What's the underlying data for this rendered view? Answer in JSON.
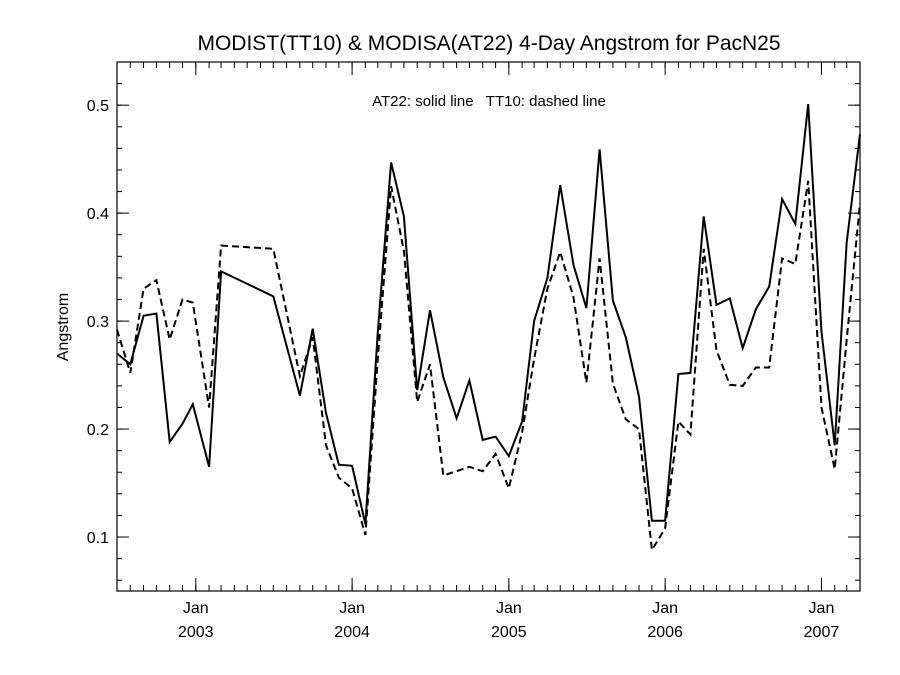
{
  "chart_data": {
    "type": "line",
    "title": "MODIST(TT10) & MODISA(AT22) 4-Day Angstrom for PacN25",
    "ylabel": "Angstrom",
    "xlabel": "",
    "annotation": "AT22: solid line   TT10: dashed line",
    "xlim": [
      "2002-07-01",
      "2007-04-01"
    ],
    "ylim": [
      0.05,
      0.54
    ],
    "y_ticks": [
      0.1,
      0.2,
      0.3,
      0.4,
      0.5
    ],
    "y_tick_labels": [
      "0.1",
      "0.2",
      "0.3",
      "0.4",
      "0.5"
    ],
    "x_ticks": [
      {
        "date": "2003-01-01",
        "month": "Jan",
        "year": "2003"
      },
      {
        "date": "2004-01-01",
        "month": "Jan",
        "year": "2004"
      },
      {
        "date": "2005-01-01",
        "month": "Jan",
        "year": "2005"
      },
      {
        "date": "2006-01-01",
        "month": "Jan",
        "year": "2006"
      },
      {
        "date": "2007-01-01",
        "month": "Jan",
        "year": "2007"
      }
    ],
    "series": [
      {
        "name": "AT22",
        "style": "solid",
        "points": [
          [
            "2002-07-01",
            0.27
          ],
          [
            "2002-08-01",
            0.26
          ],
          [
            "2002-09-01",
            0.305
          ],
          [
            "2002-10-01",
            0.307
          ],
          [
            "2002-11-01",
            0.188
          ],
          [
            "2002-12-01",
            0.205
          ],
          [
            "2002-12-25",
            0.223
          ],
          [
            "2003-02-01",
            0.165
          ],
          [
            "2003-03-01",
            0.346
          ],
          [
            "2003-07-01",
            0.323
          ],
          [
            "2003-09-01",
            0.231
          ],
          [
            "2003-10-01",
            0.293
          ],
          [
            "2003-11-01",
            0.215
          ],
          [
            "2003-12-01",
            0.167
          ],
          [
            "2004-01-01",
            0.166
          ],
          [
            "2004-02-01",
            0.112
          ],
          [
            "2004-03-01",
            0.29
          ],
          [
            "2004-04-01",
            0.447
          ],
          [
            "2004-05-01",
            0.397
          ],
          [
            "2004-06-01",
            0.236
          ],
          [
            "2004-07-01",
            0.31
          ],
          [
            "2004-08-01",
            0.248
          ],
          [
            "2004-09-01",
            0.21
          ],
          [
            "2004-10-01",
            0.245
          ],
          [
            "2004-11-01",
            0.19
          ],
          [
            "2004-12-01",
            0.193
          ],
          [
            "2005-01-01",
            0.175
          ],
          [
            "2005-02-01",
            0.207
          ],
          [
            "2005-03-01",
            0.3
          ],
          [
            "2005-04-01",
            0.34
          ],
          [
            "2005-05-01",
            0.426
          ],
          [
            "2005-06-01",
            0.352
          ],
          [
            "2005-07-01",
            0.312
          ],
          [
            "2005-08-01",
            0.459
          ],
          [
            "2005-09-01",
            0.319
          ],
          [
            "2005-10-01",
            0.285
          ],
          [
            "2005-11-01",
            0.23
          ],
          [
            "2005-12-01",
            0.115
          ],
          [
            "2006-01-01",
            0.115
          ],
          [
            "2006-02-01",
            0.251
          ],
          [
            "2006-03-01",
            0.252
          ],
          [
            "2006-04-01",
            0.397
          ],
          [
            "2006-05-01",
            0.315
          ],
          [
            "2006-06-01",
            0.321
          ],
          [
            "2006-07-01",
            0.275
          ],
          [
            "2006-08-01",
            0.311
          ],
          [
            "2006-09-01",
            0.332
          ],
          [
            "2006-10-01",
            0.413
          ],
          [
            "2006-11-01",
            0.39
          ],
          [
            "2006-12-01",
            0.501
          ],
          [
            "2007-01-01",
            0.29
          ],
          [
            "2007-02-01",
            0.185
          ],
          [
            "2007-03-01",
            0.373
          ],
          [
            "2007-04-01",
            0.473
          ]
        ]
      },
      {
        "name": "TT10",
        "style": "dashed",
        "points": [
          [
            "2002-07-01",
            0.292
          ],
          [
            "2002-08-01",
            0.252
          ],
          [
            "2002-09-01",
            0.33
          ],
          [
            "2002-10-01",
            0.338
          ],
          [
            "2002-11-01",
            0.283
          ],
          [
            "2002-12-01",
            0.32
          ],
          [
            "2002-12-25",
            0.317
          ],
          [
            "2003-02-01",
            0.22
          ],
          [
            "2003-03-01",
            0.37
          ],
          [
            "2003-07-01",
            0.367
          ],
          [
            "2003-09-01",
            0.249
          ],
          [
            "2003-10-01",
            0.285
          ],
          [
            "2003-11-01",
            0.185
          ],
          [
            "2003-12-01",
            0.155
          ],
          [
            "2004-01-01",
            0.145
          ],
          [
            "2004-02-01",
            0.102
          ],
          [
            "2004-03-01",
            0.265
          ],
          [
            "2004-04-01",
            0.425
          ],
          [
            "2004-05-01",
            0.365
          ],
          [
            "2004-06-01",
            0.225
          ],
          [
            "2004-07-01",
            0.26
          ],
          [
            "2004-08-01",
            0.157
          ],
          [
            "2004-09-01",
            0.161
          ],
          [
            "2004-10-01",
            0.165
          ],
          [
            "2004-11-01",
            0.161
          ],
          [
            "2004-12-01",
            0.177
          ],
          [
            "2005-01-01",
            0.145
          ],
          [
            "2005-02-01",
            0.197
          ],
          [
            "2005-03-01",
            0.265
          ],
          [
            "2005-04-01",
            0.33
          ],
          [
            "2005-05-01",
            0.364
          ],
          [
            "2005-06-01",
            0.322
          ],
          [
            "2005-07-01",
            0.243
          ],
          [
            "2005-08-01",
            0.358
          ],
          [
            "2005-09-01",
            0.242
          ],
          [
            "2005-10-01",
            0.209
          ],
          [
            "2005-11-01",
            0.2
          ],
          [
            "2005-12-01",
            0.088
          ],
          [
            "2006-01-01",
            0.108
          ],
          [
            "2006-02-01",
            0.207
          ],
          [
            "2006-03-01",
            0.195
          ],
          [
            "2006-04-01",
            0.367
          ],
          [
            "2006-05-01",
            0.273
          ],
          [
            "2006-06-01",
            0.241
          ],
          [
            "2006-07-01",
            0.24
          ],
          [
            "2006-08-01",
            0.257
          ],
          [
            "2006-09-01",
            0.257
          ],
          [
            "2006-10-01",
            0.358
          ],
          [
            "2006-11-01",
            0.353
          ],
          [
            "2006-12-01",
            0.43
          ],
          [
            "2007-01-01",
            0.22
          ],
          [
            "2007-02-01",
            0.163
          ],
          [
            "2007-03-01",
            0.283
          ],
          [
            "2007-04-01",
            0.409
          ]
        ]
      }
    ]
  }
}
